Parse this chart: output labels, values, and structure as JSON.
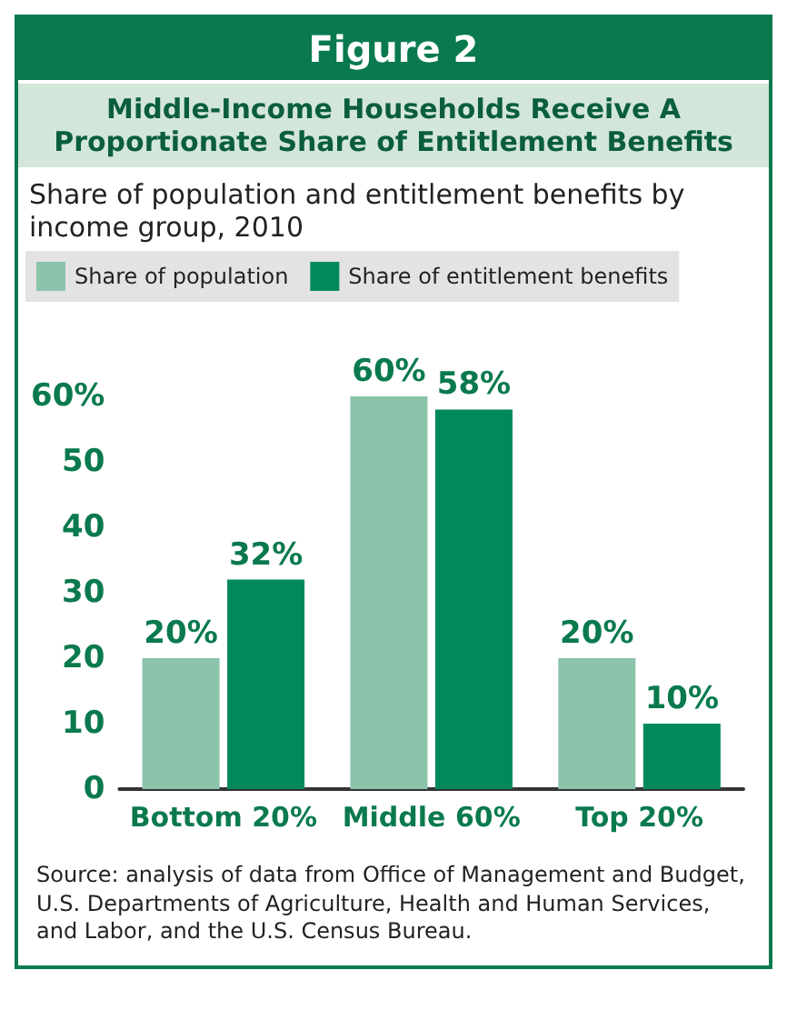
{
  "chart_data": {
    "type": "bar",
    "title": "Figure 2",
    "subtitle": "Middle-Income Households Receive A Proportionate Share of Entitlement Benefits",
    "annotations": [
      "Share of population and entitlement benefits by income group, 2010",
      "Source: analysis of data from Office of Management and Budget, U.S. Departments of Agriculture, Health and Human Services, and Labor, and the U.S. Census Bureau."
    ],
    "categories": [
      "Bottom 20%",
      "Middle 60%",
      "Top 20%"
    ],
    "series": [
      {
        "name": "Share of population",
        "color": "#8cc3ab",
        "values": [
          20,
          60,
          20
        ],
        "value_labels": [
          "20%",
          "60%",
          "20%"
        ]
      },
      {
        "name": "Share of entitlement benefits",
        "color": "#008a5c",
        "values": [
          32,
          58,
          10
        ],
        "value_labels": [
          "32%",
          "58%",
          "10%"
        ]
      }
    ],
    "ylim": [
      0,
      60
    ],
    "yticks": [
      0,
      10,
      20,
      30,
      40,
      50,
      {
        "value": 60,
        "label": "60%"
      }
    ],
    "grid": false,
    "legend": "top left"
  }
}
